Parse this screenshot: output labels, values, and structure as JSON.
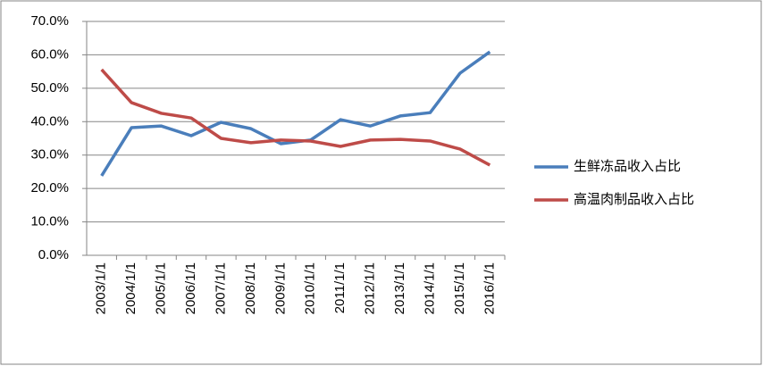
{
  "chart_data": {
    "type": "line",
    "categories": [
      "2003/1/1",
      "2004/1/1",
      "2005/1/1",
      "2006/1/1",
      "2007/1/1",
      "2008/1/1",
      "2009/1/1",
      "2010/1/1",
      "2011/1/1",
      "2012/1/1",
      "2013/1/1",
      "2014/1/1",
      "2015/1/1",
      "2016/1/1"
    ],
    "series": [
      {
        "name": "生鲜冻品收入占比",
        "color": "#4a7ebb",
        "values": [
          23.8,
          38.2,
          38.7,
          35.8,
          39.8,
          37.9,
          33.4,
          34.5,
          40.6,
          38.7,
          41.7,
          42.7,
          54.5,
          60.9
        ]
      },
      {
        "name": "高温肉制品收入占比",
        "color": "#be4b48",
        "values": [
          55.6,
          45.7,
          42.5,
          41.1,
          35.0,
          33.7,
          34.5,
          34.2,
          32.6,
          34.5,
          34.7,
          34.2,
          31.8,
          27.0
        ]
      }
    ],
    "ylim": [
      0,
      70
    ],
    "yticks": [
      {
        "value": 0,
        "label": "0.0%"
      },
      {
        "value": 10,
        "label": "10.0%"
      },
      {
        "value": 20,
        "label": "20.0%"
      },
      {
        "value": 30,
        "label": "30.0%"
      },
      {
        "value": 40,
        "label": "40.0%"
      },
      {
        "value": 50,
        "label": "50.0%"
      },
      {
        "value": 60,
        "label": "60.0%"
      },
      {
        "value": 70,
        "label": "70.0%"
      }
    ],
    "grid": true,
    "legend": "right"
  }
}
